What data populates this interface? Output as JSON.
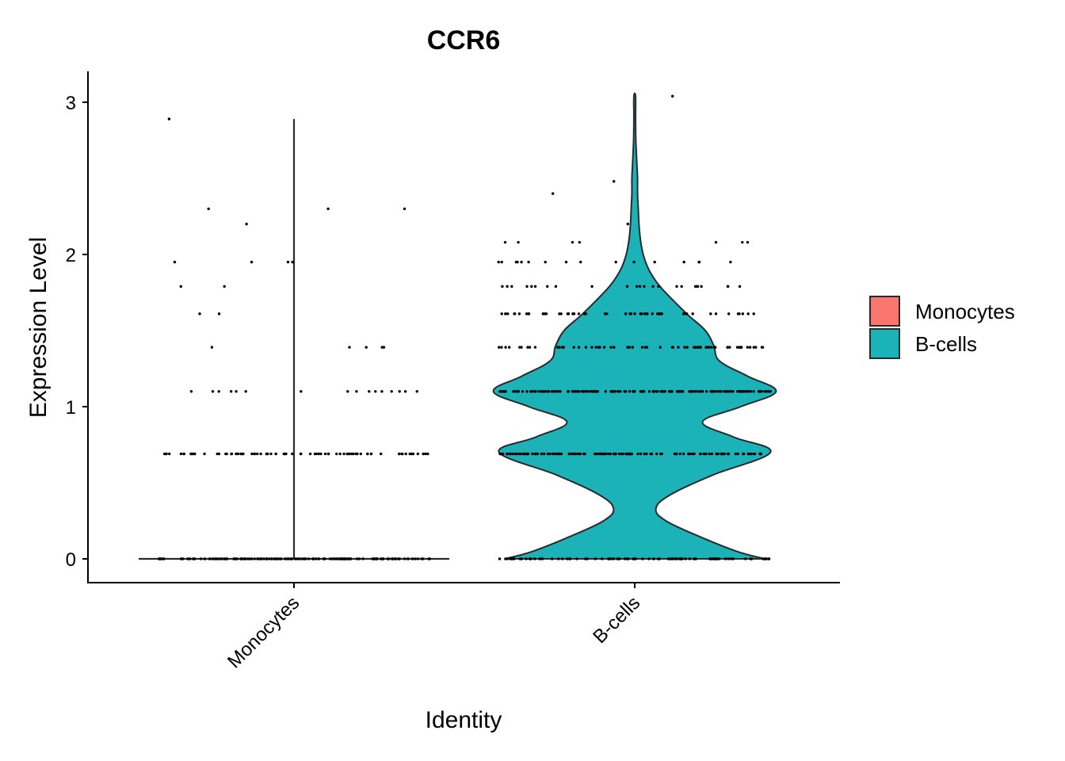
{
  "chart_data": {
    "type": "violin",
    "title": "CCR6",
    "xlabel": "Identity",
    "ylabel": "Expression Level",
    "ylim": [
      -0.15,
      3.2
    ],
    "yticks": [
      0,
      1,
      2,
      3
    ],
    "categories": [
      "Monocytes",
      "B-cells"
    ],
    "legend": {
      "position": "right",
      "items": [
        "Monocytes",
        "B-cells"
      ]
    },
    "colors": {
      "Monocytes": "#F8766D",
      "B-cells": "#1BB2B8",
      "outline": "#2a2a2a"
    },
    "grid": false,
    "series": [
      {
        "name": "Monocytes",
        "max": 2.89,
        "density": [
          [
            0,
            1.0
          ],
          [
            0.01,
            0.0
          ],
          [
            2.89,
            0.0
          ]
        ],
        "points": [
          {
            "y": 0,
            "n": 160
          },
          {
            "y": 0.69,
            "n": 80
          },
          {
            "y": 1.1,
            "n": 16
          },
          {
            "y": 1.39,
            "n": 5
          },
          {
            "y": 1.61,
            "n": 2
          },
          {
            "y": 1.79,
            "n": 2
          },
          {
            "y": 1.95,
            "n": 4
          },
          {
            "y": 2.2,
            "n": 1
          },
          {
            "y": 2.3,
            "n": 3
          },
          {
            "y": 2.89,
            "n": 1
          }
        ]
      },
      {
        "name": "B-cells",
        "max": 3.04,
        "density": [
          [
            0,
            0.92
          ],
          [
            0.05,
            0.72
          ],
          [
            0.15,
            0.45
          ],
          [
            0.25,
            0.22
          ],
          [
            0.33,
            0.15
          ],
          [
            0.42,
            0.25
          ],
          [
            0.55,
            0.55
          ],
          [
            0.7,
            0.96
          ],
          [
            0.8,
            0.7
          ],
          [
            0.9,
            0.48
          ],
          [
            1.0,
            0.75
          ],
          [
            1.1,
            1.0
          ],
          [
            1.2,
            0.8
          ],
          [
            1.3,
            0.6
          ],
          [
            1.4,
            0.56
          ],
          [
            1.5,
            0.5
          ],
          [
            1.6,
            0.38
          ],
          [
            1.7,
            0.27
          ],
          [
            1.8,
            0.17
          ],
          [
            1.9,
            0.1
          ],
          [
            2.0,
            0.06
          ],
          [
            2.1,
            0.04
          ],
          [
            2.2,
            0.03
          ],
          [
            2.3,
            0.025
          ],
          [
            2.4,
            0.02
          ],
          [
            2.5,
            0.02
          ],
          [
            2.6,
            0.015
          ],
          [
            2.75,
            0.008
          ],
          [
            2.9,
            0.006
          ],
          [
            3.04,
            0.006
          ]
        ],
        "points": [
          {
            "y": 0,
            "n": 90
          },
          {
            "y": 0.69,
            "n": 130
          },
          {
            "y": 1.1,
            "n": 150
          },
          {
            "y": 1.39,
            "n": 60
          },
          {
            "y": 1.61,
            "n": 55
          },
          {
            "y": 1.79,
            "n": 24
          },
          {
            "y": 1.95,
            "n": 16
          },
          {
            "y": 2.08,
            "n": 7
          },
          {
            "y": 2.2,
            "n": 1
          },
          {
            "y": 2.4,
            "n": 1
          },
          {
            "y": 2.48,
            "n": 1
          },
          {
            "y": 3.04,
            "n": 1
          }
        ]
      }
    ]
  }
}
